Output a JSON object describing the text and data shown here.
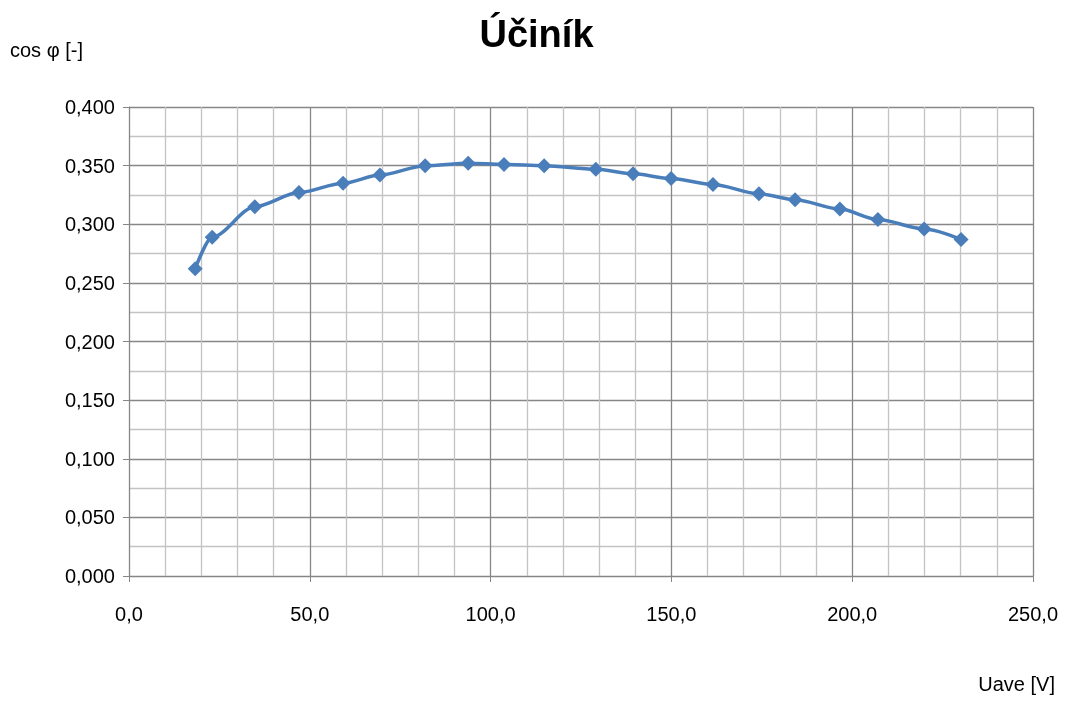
{
  "chart_data": {
    "type": "line",
    "title": "Účiník",
    "xlabel": "Uave [V]",
    "ylabel": "cos φ [-]",
    "x": [
      18.3,
      23.0,
      34.8,
      47.0,
      59.2,
      69.4,
      81.9,
      93.8,
      103.7,
      114.8,
      129.1,
      139.4,
      149.9,
      161.5,
      174.2,
      184.2,
      196.6,
      207.1,
      219.9,
      230.1
    ],
    "series": [
      {
        "color": "#4a7ebb",
        "values": [
          0.262,
          0.289,
          0.315,
          0.327,
          0.335,
          0.342,
          0.35,
          0.352,
          0.351,
          0.35,
          0.347,
          0.343,
          0.339,
          0.334,
          0.326,
          0.321,
          0.313,
          0.304,
          0.296,
          0.287
        ]
      }
    ],
    "xlim": [
      0,
      250
    ],
    "xticks": [
      {
        "value": 0,
        "label": "0,0"
      },
      {
        "value": 50,
        "label": "50,0"
      },
      {
        "value": 100,
        "label": "100,0"
      },
      {
        "value": 150,
        "label": "150,0"
      },
      {
        "value": 200,
        "label": "200,0"
      },
      {
        "value": 250,
        "label": "250,0"
      }
    ],
    "ylim": [
      0,
      0.4
    ],
    "yticks": [
      {
        "value": 0,
        "label": "0,000"
      },
      {
        "value": 0.05,
        "label": "0,050"
      },
      {
        "value": 0.1,
        "label": "0,100"
      },
      {
        "value": 0.15,
        "label": "0,150"
      },
      {
        "value": 0.2,
        "label": "0,200"
      },
      {
        "value": 0.25,
        "label": "0,250"
      },
      {
        "value": 0.3,
        "label": "0,300"
      },
      {
        "value": 0.35,
        "label": "0,350"
      },
      {
        "value": 0.4,
        "label": "0,400"
      }
    ],
    "grid": true,
    "marker": "diamond",
    "line_style": "solid"
  }
}
